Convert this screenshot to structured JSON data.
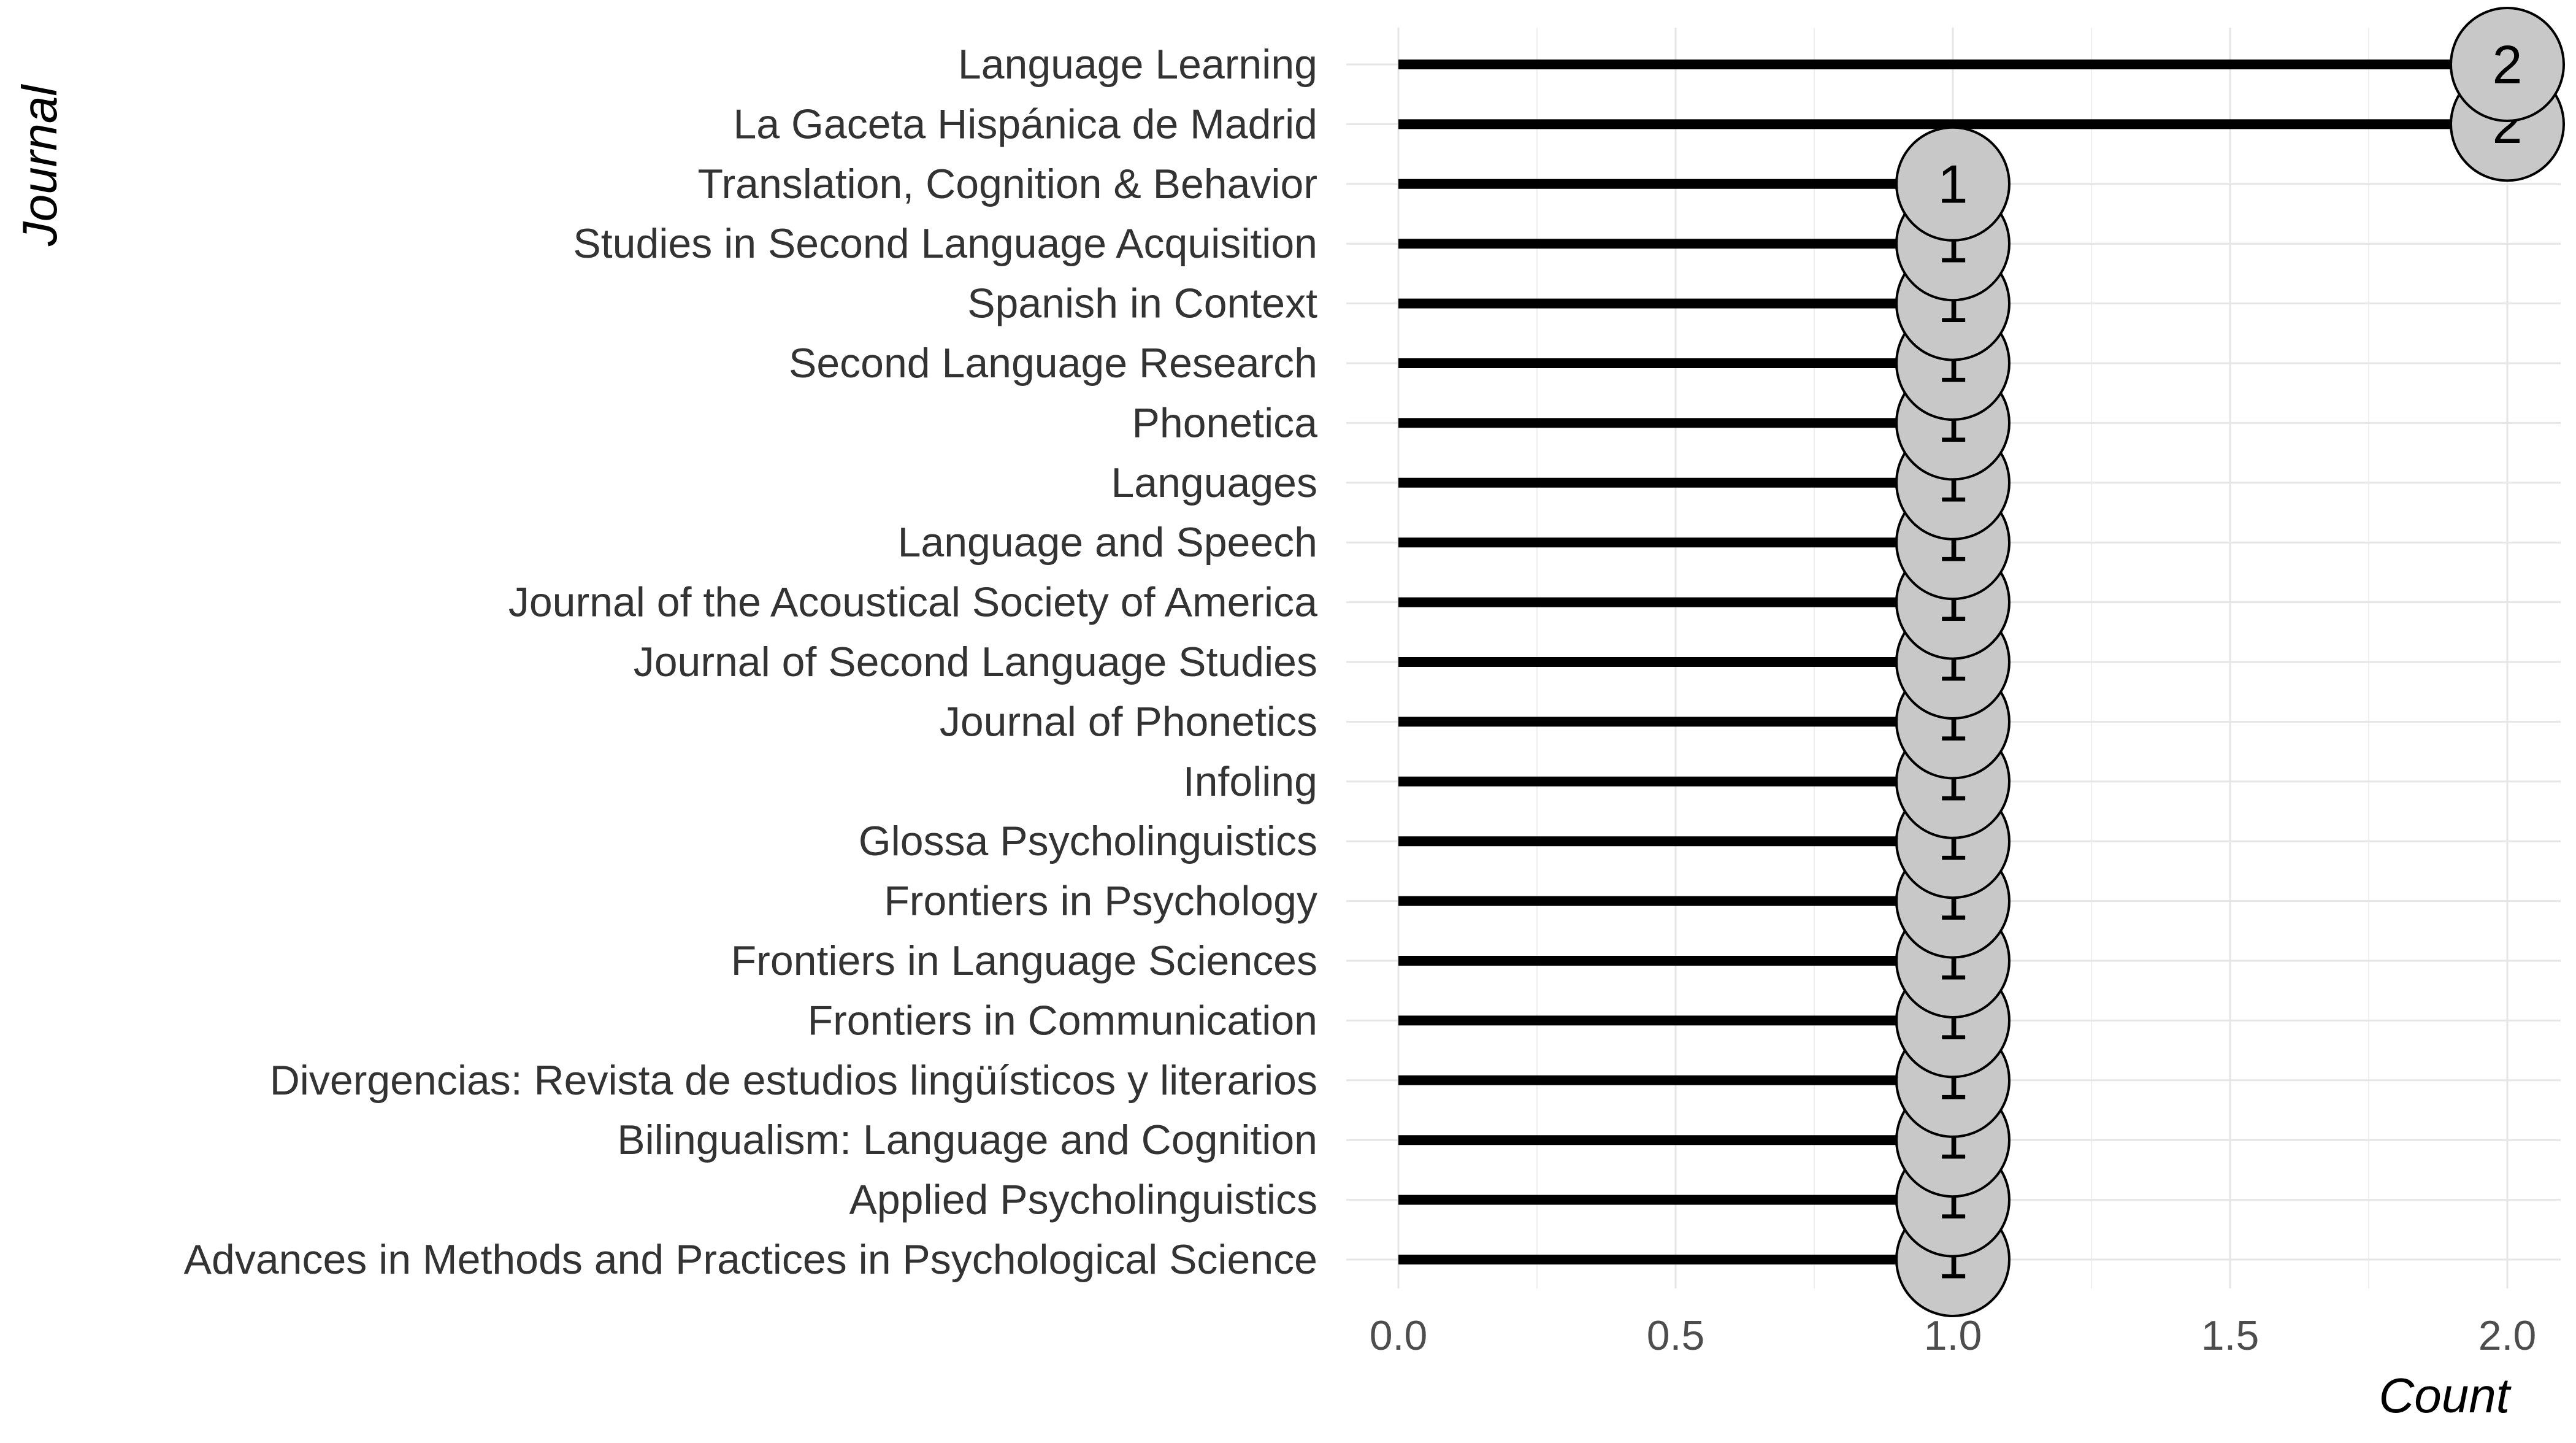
{
  "chart_data": {
    "type": "lollipop",
    "orientation": "horizontal",
    "xlabel": "Count",
    "ylabel": "Journal",
    "xlim": [
      0,
      2
    ],
    "x_ticks": [
      "0.0",
      "0.5",
      "1.0",
      "1.5",
      "2.0"
    ],
    "x_tick_values": [
      0,
      0.5,
      1,
      1.5,
      2
    ],
    "grid": true,
    "legend": "none",
    "marker_fill": "#c8c8c8",
    "stem_color": "#000000",
    "categories": [
      "Language Learning",
      "La Gaceta Hispánica de Madrid",
      "Translation, Cognition & Behavior",
      "Studies in Second Language Acquisition",
      "Spanish in Context",
      "Second Language Research",
      "Phonetica",
      "Languages",
      "Language and Speech",
      "Journal of the Acoustical Society of America",
      "Journal of Second Language Studies",
      "Journal of Phonetics",
      "Infoling",
      "Glossa Psycholinguistics",
      "Frontiers in Psychology",
      "Frontiers in Language Sciences",
      "Frontiers in Communication",
      "Divergencias: Revista de estudios lingüísticos y literarios",
      "Bilingualism: Language and Cognition",
      "Applied Psycholinguistics",
      "Advances in Methods and Practices in Psychological Science"
    ],
    "values": [
      2,
      2,
      1,
      1,
      1,
      1,
      1,
      1,
      1,
      1,
      1,
      1,
      1,
      1,
      1,
      1,
      1,
      1,
      1,
      1,
      1
    ]
  }
}
